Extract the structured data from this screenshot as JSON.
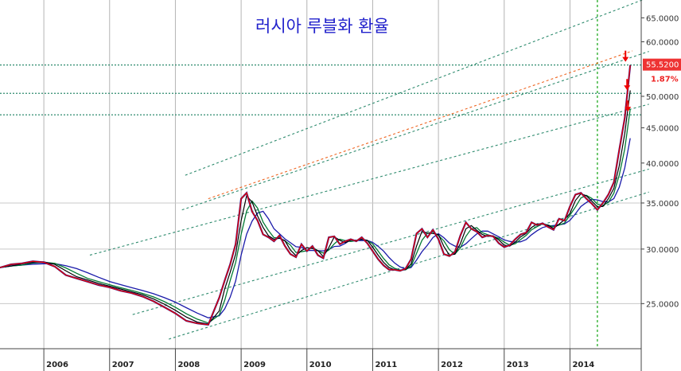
{
  "chart_data": {
    "type": "line",
    "title": "러시아 루블화 환율",
    "xlabel": "",
    "ylabel": "",
    "y_scale": "log",
    "ylim": [
      21.5,
      69
    ],
    "xlim": [
      "2005-05",
      "2015-02"
    ],
    "grid": true,
    "x_ticks": [
      "2006",
      "2007",
      "2008",
      "2009",
      "2010",
      "2011",
      "2012",
      "2013",
      "2014"
    ],
    "y_ticks": [
      "65.0000",
      "60.0000",
      "50.0000",
      "45.0000",
      "40.0000",
      "35.0000",
      "30.0000",
      "25.0000"
    ],
    "last_price_label": "55.5200",
    "change_label": "1.87%",
    "colors": {
      "price": "#e00000",
      "price_alt": "#1a1aaa",
      "ma_short": "#e00000",
      "ma_mid": "#000000",
      "ma_green": "#007a33",
      "ma_long": "#1a1aaa",
      "channel": "#2e8b6e",
      "mid_channel": "#ee6622",
      "vertical_marker": "#22aa22",
      "arrow": "#ee0000",
      "price_box": "#ee3333"
    },
    "vertical_marker_x": "2014-06",
    "horizontal_levels": [
      55.52,
      50.5,
      47.0
    ],
    "series": [
      {
        "name": "",
        "x": [
          "2005-05",
          "2005-07",
          "2005-09",
          "2005-11",
          "2006-01",
          "2006-03",
          "2006-05",
          "2006-07",
          "2006-09",
          "2006-11",
          "2007-01",
          "2007-03",
          "2007-05",
          "2007-07",
          "2007-09",
          "2007-11",
          "2008-01",
          "2008-03",
          "2008-05",
          "2008-07",
          "2008-09",
          "2008-10",
          "2008-11",
          "2008-12",
          "2009-01",
          "2009-02",
          "2009-03",
          "2009-04",
          "2009-05",
          "2009-06",
          "2009-07",
          "2009-08",
          "2009-09",
          "2009-10",
          "2009-11",
          "2009-12",
          "2010-01",
          "2010-02",
          "2010-03",
          "2010-04",
          "2010-05",
          "2010-06",
          "2010-07",
          "2010-08",
          "2010-09",
          "2010-10",
          "2010-11",
          "2010-12",
          "2011-01",
          "2011-02",
          "2011-03",
          "2011-04",
          "2011-05",
          "2011-06",
          "2011-07",
          "2011-08",
          "2011-09",
          "2011-10",
          "2011-11",
          "2011-12",
          "2012-01",
          "2012-02",
          "2012-03",
          "2012-04",
          "2012-05",
          "2012-06",
          "2012-07",
          "2012-08",
          "2012-09",
          "2012-10",
          "2012-11",
          "2012-12",
          "2013-01",
          "2013-02",
          "2013-03",
          "2013-04",
          "2013-05",
          "2013-06",
          "2013-07",
          "2013-08",
          "2013-09",
          "2013-10",
          "2013-11",
          "2013-12",
          "2014-01",
          "2014-02",
          "2014-03",
          "2014-04",
          "2014-05",
          "2014-06",
          "2014-07",
          "2014-08",
          "2014-09",
          "2014-10",
          "2014-11",
          "2014-12"
        ],
        "values": [
          28.2,
          28.5,
          28.6,
          28.8,
          28.7,
          28.3,
          27.5,
          27.2,
          26.9,
          26.6,
          26.4,
          26.1,
          25.9,
          25.6,
          25.2,
          24.7,
          24.2,
          23.6,
          23.4,
          23.3,
          25.5,
          27.0,
          28.5,
          30.5,
          35.5,
          36.2,
          34.0,
          33.0,
          31.5,
          31.2,
          30.8,
          31.4,
          30.3,
          29.5,
          29.2,
          30.5,
          29.8,
          30.3,
          29.4,
          29.1,
          31.2,
          31.3,
          30.5,
          30.8,
          31.0,
          30.8,
          31.2,
          30.6,
          29.8,
          29.0,
          28.4,
          28.0,
          28.0,
          27.9,
          28.1,
          29.0,
          31.6,
          32.1,
          31.2,
          32.0,
          31.0,
          29.5,
          29.3,
          29.7,
          31.4,
          32.8,
          32.1,
          31.8,
          31.2,
          31.4,
          31.3,
          30.6,
          30.2,
          30.4,
          31.0,
          31.5,
          31.7,
          32.8,
          32.5,
          32.7,
          32.3,
          32.0,
          33.2,
          33.0,
          34.6,
          36.0,
          36.2,
          35.5,
          34.9,
          34.2,
          35.0,
          36.0,
          37.5,
          41.8,
          46.5,
          55.5
        ]
      }
    ]
  }
}
